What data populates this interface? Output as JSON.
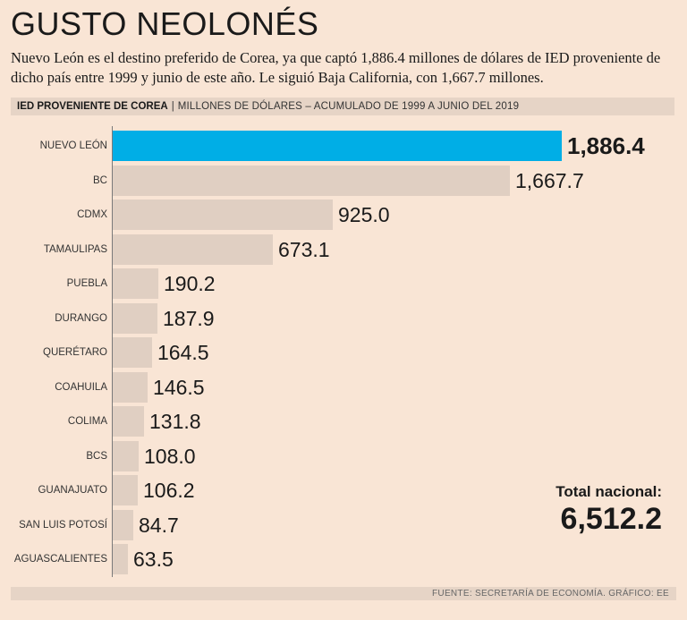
{
  "title": "GUSTO NEOLONÉS",
  "subtitle": "Nuevo León es el destino preferido de Corea, ya que captó 1,886.4 millones de dólares de IED proveniente de dicho país entre 1999 y junio de este año. Le siguió Baja California, con 1,667.7 millones.",
  "header": {
    "title": "IED PROVENIENTE DE COREA",
    "separator": "|",
    "subtitle": "MILLONES DE DÓLARES – ACUMULADO DE 1999 A JUNIO DEL 2019"
  },
  "colors": {
    "highlight": "#00aee6",
    "bar": "#e0cfc2",
    "background": "#f9e5d5"
  },
  "chart_data": {
    "type": "bar",
    "orientation": "horizontal",
    "title": "IED PROVENIENTE DE COREA",
    "xlabel": "MILLONES DE DÓLARES – ACUMULADO DE 1999 A JUNIO DEL 2019",
    "ylabel": "",
    "xlim": [
      0,
      1886.4
    ],
    "grid": false,
    "highlight_category": "NUEVO LEÓN",
    "categories": [
      "NUEVO LEÓN",
      "BC",
      "CDMX",
      "TAMAULIPAS",
      "PUEBLA",
      "DURANGO",
      "QUERÉTARO",
      "COAHUILA",
      "COLIMA",
      "BCS",
      "GUANAJUATO",
      "SAN LUIS POTOSÍ",
      "AGUASCALIENTES"
    ],
    "values": [
      1886.4,
      1667.7,
      925.0,
      673.1,
      190.2,
      187.9,
      164.5,
      146.5,
      131.8,
      108.0,
      106.2,
      84.7,
      63.5
    ],
    "value_labels": [
      "1,886.4",
      "1,667.7",
      "925.0",
      "673.1",
      "190.2",
      "187.9",
      "164.5",
      "146.5",
      "131.8",
      "108.0",
      "106.2",
      "84.7",
      "63.5"
    ]
  },
  "total": {
    "label": "Total nacional:",
    "value": "6,512.2"
  },
  "footer": "FUENTE: SECRETARÍA DE ECONOMÍA. GRÁFICO: EE"
}
